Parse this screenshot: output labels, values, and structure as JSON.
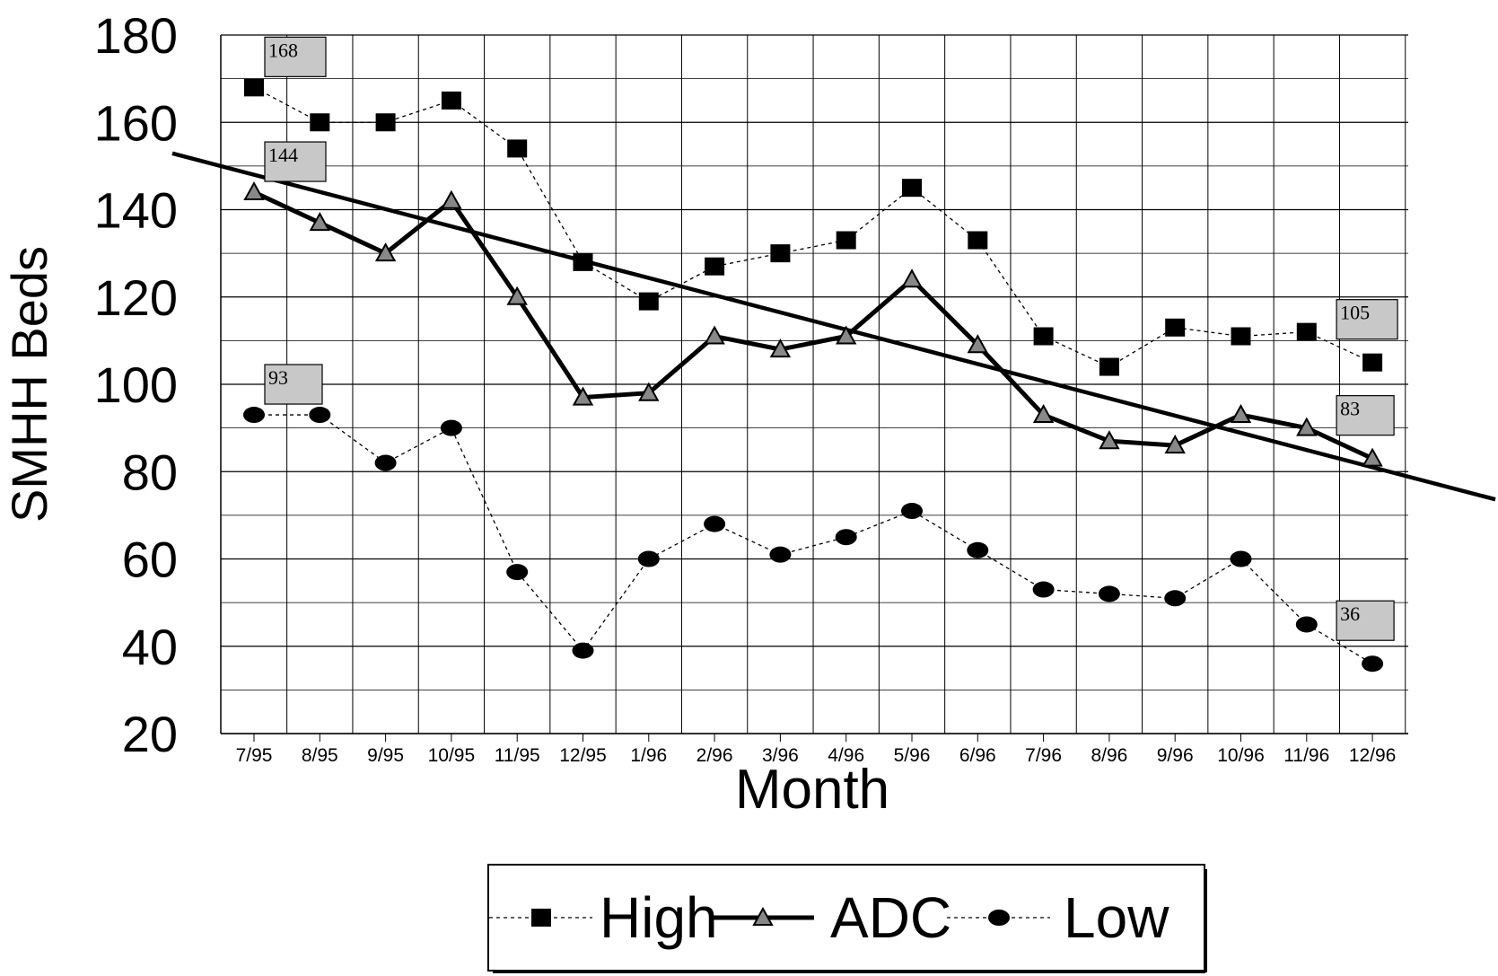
{
  "chart_data": {
    "type": "line",
    "xlabel": "Month",
    "ylabel": "SMHH Beds",
    "ylim": [
      20,
      180
    ],
    "yticks": [
      20,
      40,
      60,
      80,
      100,
      120,
      140,
      160,
      180
    ],
    "categories": [
      "7/95",
      "8/95",
      "9/95",
      "10/95",
      "11/95",
      "12/95",
      "1/96",
      "2/96",
      "3/96",
      "4/96",
      "5/96",
      "6/96",
      "7/96",
      "8/96",
      "9/96",
      "10/96",
      "11/96",
      "12/96"
    ],
    "series": [
      {
        "name": "High",
        "marker": "square",
        "line": "dashed",
        "values": [
          168,
          160,
          160,
          165,
          154,
          128,
          119,
          127,
          130,
          133,
          145,
          133,
          111,
          104,
          113,
          111,
          112,
          105
        ]
      },
      {
        "name": "ADC",
        "marker": "triangle",
        "line": "solid-thick",
        "values": [
          144,
          137,
          130,
          142,
          120,
          97,
          98,
          111,
          108,
          111,
          124,
          109,
          93,
          87,
          86,
          93,
          90,
          83
        ]
      },
      {
        "name": "Low",
        "marker": "circle",
        "line": "dashed",
        "values": [
          93,
          93,
          82,
          90,
          57,
          39,
          60,
          68,
          61,
          65,
          71,
          62,
          53,
          52,
          51,
          60,
          45,
          36
        ]
      }
    ],
    "trendline": {
      "start": 148,
      "end": 81
    },
    "annotations": [
      {
        "text": "168",
        "series": "High",
        "index": 0
      },
      {
        "text": "144",
        "series": "ADC",
        "index": 0
      },
      {
        "text": "93",
        "series": "Low",
        "index": 0
      },
      {
        "text": "105",
        "series": "High",
        "index": 17
      },
      {
        "text": "83",
        "series": "ADC",
        "index": 17
      },
      {
        "text": "36",
        "series": "Low",
        "index": 17
      }
    ],
    "grid": true,
    "legend": {
      "placement": "bottom",
      "entries": [
        "High",
        "ADC",
        "Low"
      ]
    },
    "colors": {
      "line": "#000000",
      "annotation_fill": "#c8c8c8",
      "grid": "#000000"
    }
  }
}
